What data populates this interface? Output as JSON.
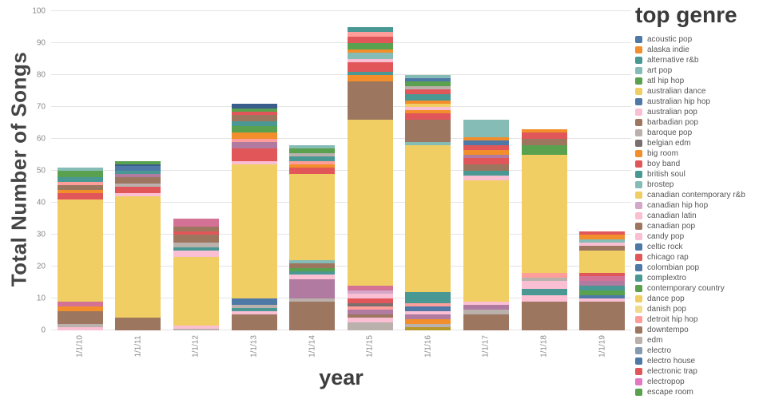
{
  "chart_data": {
    "type": "bar",
    "variant": "stacked",
    "title": "",
    "xlabel": "year",
    "ylabel": "Total Number of Songs",
    "ylim": [
      0,
      100
    ],
    "yticks": [
      0,
      10,
      20,
      30,
      40,
      50,
      60,
      70,
      80,
      90,
      100
    ],
    "grid": true,
    "legend_position": "right",
    "legend_title": "top genre",
    "categories": [
      "1/1/10",
      "1/1/11",
      "1/1/12",
      "1/1/13",
      "1/1/14",
      "1/1/15",
      "1/1/16",
      "1/1/17",
      "1/1/18",
      "1/1/19"
    ],
    "totals": [
      51,
      53,
      35,
      71,
      58,
      95,
      80,
      66,
      63,
      31
    ],
    "bars": [
      {
        "category": "1/1/10",
        "segments": [
          {
            "color": "#FABFD2",
            "value": 1
          },
          {
            "color": "#BAB0AC",
            "value": 1
          },
          {
            "color": "#9D7660",
            "value": 4
          },
          {
            "color": "#F28E2B",
            "value": 1.5
          },
          {
            "color": "#D37295",
            "value": 1.5
          },
          {
            "color": "#F1CE63",
            "value": 32
          },
          {
            "color": "#E15759",
            "value": 2
          },
          {
            "color": "#F28E2B",
            "value": 1
          },
          {
            "color": "#9D7660",
            "value": 1.5
          },
          {
            "color": "#FF9D9A",
            "value": 1
          },
          {
            "color": "#499894",
            "value": 1.5
          },
          {
            "color": "#59A14F",
            "value": 2
          },
          {
            "color": "#86BCB6",
            "value": 1
          }
        ]
      },
      {
        "category": "1/1/11",
        "segments": [
          {
            "color": "#9D7660",
            "value": 4
          },
          {
            "color": "#F1CE63",
            "value": 38
          },
          {
            "color": "#FABFD2",
            "value": 1
          },
          {
            "color": "#E15759",
            "value": 2
          },
          {
            "color": "#BAB0AC",
            "value": 1
          },
          {
            "color": "#9D7660",
            "value": 2
          },
          {
            "color": "#B07AA1",
            "value": 1
          },
          {
            "color": "#499894",
            "value": 1
          },
          {
            "color": "#4E79A7",
            "value": 1.5
          },
          {
            "color": "#3A5E8C",
            "value": 0.5
          },
          {
            "color": "#59A14F",
            "value": 1
          }
        ]
      },
      {
        "category": "1/1/12",
        "segments": [
          {
            "color": "#BAB0AC",
            "value": 0.5
          },
          {
            "color": "#FABFD2",
            "value": 1
          },
          {
            "color": "#F1CE63",
            "value": 21.5
          },
          {
            "color": "#FABFD2",
            "value": 2
          },
          {
            "color": "#499894",
            "value": 1
          },
          {
            "color": "#BAB0AC",
            "value": 1.5
          },
          {
            "color": "#9D7660",
            "value": 2.5
          },
          {
            "color": "#E15759",
            "value": 1
          },
          {
            "color": "#9D7660",
            "value": 1.5
          },
          {
            "color": "#D37295",
            "value": 2.5
          }
        ]
      },
      {
        "category": "1/1/13",
        "segments": [
          {
            "color": "#9D7660",
            "value": 5
          },
          {
            "color": "#FABFD2",
            "value": 1
          },
          {
            "color": "#499894",
            "value": 1
          },
          {
            "color": "#BAB0AC",
            "value": 1
          },
          {
            "color": "#4E79A7",
            "value": 2
          },
          {
            "color": "#F1CE63",
            "value": 42
          },
          {
            "color": "#FABFD2",
            "value": 1
          },
          {
            "color": "#E15759",
            "value": 4
          },
          {
            "color": "#B07AA1",
            "value": 2
          },
          {
            "color": "#FF9D9A",
            "value": 1
          },
          {
            "color": "#F28E2B",
            "value": 2
          },
          {
            "color": "#59A14F",
            "value": 2
          },
          {
            "color": "#499894",
            "value": 1.5
          },
          {
            "color": "#9D7660",
            "value": 2
          },
          {
            "color": "#E15759",
            "value": 1
          },
          {
            "color": "#59A14F",
            "value": 1
          },
          {
            "color": "#3A5E8C",
            "value": 1.5
          }
        ]
      },
      {
        "category": "1/1/14",
        "segments": [
          {
            "color": "#9D7660",
            "value": 9
          },
          {
            "color": "#BAB0AC",
            "value": 1
          },
          {
            "color": "#B07AA1",
            "value": 6
          },
          {
            "color": "#FABFD2",
            "value": 1.5
          },
          {
            "color": "#499894",
            "value": 1
          },
          {
            "color": "#59A14F",
            "value": 1
          },
          {
            "color": "#9D7660",
            "value": 1.5
          },
          {
            "color": "#86BCB6",
            "value": 1
          },
          {
            "color": "#F1CE63",
            "value": 27
          },
          {
            "color": "#E15759",
            "value": 2
          },
          {
            "color": "#F28E2B",
            "value": 1
          },
          {
            "color": "#FF9D9A",
            "value": 1
          },
          {
            "color": "#499894",
            "value": 1.5
          },
          {
            "color": "#BAB0AC",
            "value": 1
          },
          {
            "color": "#59A14F",
            "value": 1.5
          },
          {
            "color": "#86BCB6",
            "value": 1
          }
        ]
      },
      {
        "category": "1/1/15",
        "segments": [
          {
            "color": "#BAB0AC",
            "value": 2.5
          },
          {
            "color": "#FABFD2",
            "value": 1.5
          },
          {
            "color": "#9D7660",
            "value": 1
          },
          {
            "color": "#B07AA1",
            "value": 1.5
          },
          {
            "color": "#FF9D9A",
            "value": 1
          },
          {
            "color": "#79706E",
            "value": 1
          },
          {
            "color": "#E15759",
            "value": 1.5
          },
          {
            "color": "#FABFD2",
            "value": 1.5
          },
          {
            "color": "#D4A6C8",
            "value": 1
          },
          {
            "color": "#D37295",
            "value": 1.5
          },
          {
            "color": "#F1CE63",
            "value": 52
          },
          {
            "color": "#9D7660",
            "value": 12
          },
          {
            "color": "#F28E2B",
            "value": 2
          },
          {
            "color": "#499894",
            "value": 1
          },
          {
            "color": "#E15759",
            "value": 3
          },
          {
            "color": "#FABFD2",
            "value": 1
          },
          {
            "color": "#86BCB6",
            "value": 2
          },
          {
            "color": "#F28E2B",
            "value": 1
          },
          {
            "color": "#59A14F",
            "value": 2
          },
          {
            "color": "#E15759",
            "value": 2
          },
          {
            "color": "#FF9D9A",
            "value": 1.5
          },
          {
            "color": "#499894",
            "value": 1.5
          }
        ]
      },
      {
        "category": "1/1/16",
        "segments": [
          {
            "color": "#B6992D",
            "value": 1
          },
          {
            "color": "#BAB0AC",
            "value": 1
          },
          {
            "color": "#F28E2B",
            "value": 1.5
          },
          {
            "color": "#B07AA1",
            "value": 1.5
          },
          {
            "color": "#FABFD2",
            "value": 1
          },
          {
            "color": "#4E79A7",
            "value": 1.5
          },
          {
            "color": "#FF9D9A",
            "value": 1
          },
          {
            "color": "#499894",
            "value": 3.5
          },
          {
            "color": "#F1CE63",
            "value": 46
          },
          {
            "color": "#86BCB6",
            "value": 1
          },
          {
            "color": "#9D7660",
            "value": 7
          },
          {
            "color": "#E15759",
            "value": 2
          },
          {
            "color": "#F28E2B",
            "value": 1
          },
          {
            "color": "#FABFD2",
            "value": 1
          },
          {
            "color": "#F1CE63",
            "value": 1
          },
          {
            "color": "#F28E2B",
            "value": 1
          },
          {
            "color": "#499894",
            "value": 2
          },
          {
            "color": "#E15759",
            "value": 1.5
          },
          {
            "color": "#BAB0AC",
            "value": 1
          },
          {
            "color": "#59A14F",
            "value": 1.5
          },
          {
            "color": "#4E79A7",
            "value": 1
          },
          {
            "color": "#86BCB6",
            "value": 1
          }
        ]
      },
      {
        "category": "1/1/17",
        "segments": [
          {
            "color": "#9D7660",
            "value": 5
          },
          {
            "color": "#BAB0AC",
            "value": 1.5
          },
          {
            "color": "#B07AA1",
            "value": 1.5
          },
          {
            "color": "#FABFD2",
            "value": 1
          },
          {
            "color": "#F1CE63",
            "value": 38
          },
          {
            "color": "#FABFD2",
            "value": 1.5
          },
          {
            "color": "#499894",
            "value": 1.5
          },
          {
            "color": "#9D7660",
            "value": 2
          },
          {
            "color": "#E15759",
            "value": 2
          },
          {
            "color": "#B07AA1",
            "value": 1
          },
          {
            "color": "#F28E2B",
            "value": 1.5
          },
          {
            "color": "#E15759",
            "value": 1.5
          },
          {
            "color": "#4E79A7",
            "value": 1.5
          },
          {
            "color": "#F28E2B",
            "value": 1
          },
          {
            "color": "#86BCB6",
            "value": 5.5
          }
        ]
      },
      {
        "category": "1/1/18",
        "segments": [
          {
            "color": "#9D7660",
            "value": 9
          },
          {
            "color": "#FABFD2",
            "value": 2
          },
          {
            "color": "#499894",
            "value": 2
          },
          {
            "color": "#FABFD2",
            "value": 2.5
          },
          {
            "color": "#BAB0AC",
            "value": 1
          },
          {
            "color": "#FF9D9A",
            "value": 1.5
          },
          {
            "color": "#F1CE63",
            "value": 37
          },
          {
            "color": "#59A14F",
            "value": 3
          },
          {
            "color": "#9D7660",
            "value": 2
          },
          {
            "color": "#E15759",
            "value": 2
          },
          {
            "color": "#F28E2B",
            "value": 1
          }
        ]
      },
      {
        "category": "1/1/19",
        "segments": [
          {
            "color": "#9D7660",
            "value": 9
          },
          {
            "color": "#FABFD2",
            "value": 1
          },
          {
            "color": "#4E79A7",
            "value": 1
          },
          {
            "color": "#59A14F",
            "value": 1.5
          },
          {
            "color": "#499894",
            "value": 1.5
          },
          {
            "color": "#B07AA1",
            "value": 1.5
          },
          {
            "color": "#D37295",
            "value": 1.5
          },
          {
            "color": "#E15759",
            "value": 1
          },
          {
            "color": "#F1CE63",
            "value": 7
          },
          {
            "color": "#9D7660",
            "value": 1.5
          },
          {
            "color": "#FABFD2",
            "value": 1
          },
          {
            "color": "#86BCB6",
            "value": 1
          },
          {
            "color": "#F28E2B",
            "value": 1.5
          },
          {
            "color": "#E15759",
            "value": 1
          }
        ]
      }
    ],
    "legend_items": [
      {
        "label": "acoustic pop",
        "color": "#4E79A7"
      },
      {
        "label": "alaska indie",
        "color": "#F28E2B"
      },
      {
        "label": "alternative r&b",
        "color": "#499894"
      },
      {
        "label": "art pop",
        "color": "#86BCB6"
      },
      {
        "label": "atl hip hop",
        "color": "#59A14F"
      },
      {
        "label": "australian dance",
        "color": "#F1CE63"
      },
      {
        "label": "australian hip hop",
        "color": "#4E79A7"
      },
      {
        "label": "australian pop",
        "color": "#FABFD2"
      },
      {
        "label": "barbadian pop",
        "color": "#9D7660"
      },
      {
        "label": "baroque pop",
        "color": "#BAB0AC"
      },
      {
        "label": "belgian edm",
        "color": "#79706E"
      },
      {
        "label": "big room",
        "color": "#F28E2B"
      },
      {
        "label": "boy band",
        "color": "#E15759"
      },
      {
        "label": "british soul",
        "color": "#499894"
      },
      {
        "label": "brostep",
        "color": "#86BCB6"
      },
      {
        "label": "canadian contemporary r&b",
        "color": "#F1CE63"
      },
      {
        "label": "canadian hip hop",
        "color": "#D4A6C8"
      },
      {
        "label": "canadian latin",
        "color": "#FABFD2"
      },
      {
        "label": "canadian pop",
        "color": "#9D7660"
      },
      {
        "label": "candy pop",
        "color": "#FABFD2"
      },
      {
        "label": "celtic rock",
        "color": "#4E79A7"
      },
      {
        "label": "chicago rap",
        "color": "#E15759"
      },
      {
        "label": "colombian pop",
        "color": "#4E79A7"
      },
      {
        "label": "complextro",
        "color": "#499894"
      },
      {
        "label": "contemporary country",
        "color": "#59A14F"
      },
      {
        "label": "dance pop",
        "color": "#F1CE63"
      },
      {
        "label": "danish pop",
        "color": "#F0DC8C"
      },
      {
        "label": "detroit hip hop",
        "color": "#FF9D9A"
      },
      {
        "label": "downtempo",
        "color": "#9D7660"
      },
      {
        "label": "edm",
        "color": "#BAB0AC"
      },
      {
        "label": "electro",
        "color": "#8699AE"
      },
      {
        "label": "electro house",
        "color": "#4E79A7"
      },
      {
        "label": "electronic trap",
        "color": "#E15759"
      },
      {
        "label": "electropop",
        "color": "#E377C2"
      },
      {
        "label": "escape room",
        "color": "#59A14F"
      }
    ]
  }
}
